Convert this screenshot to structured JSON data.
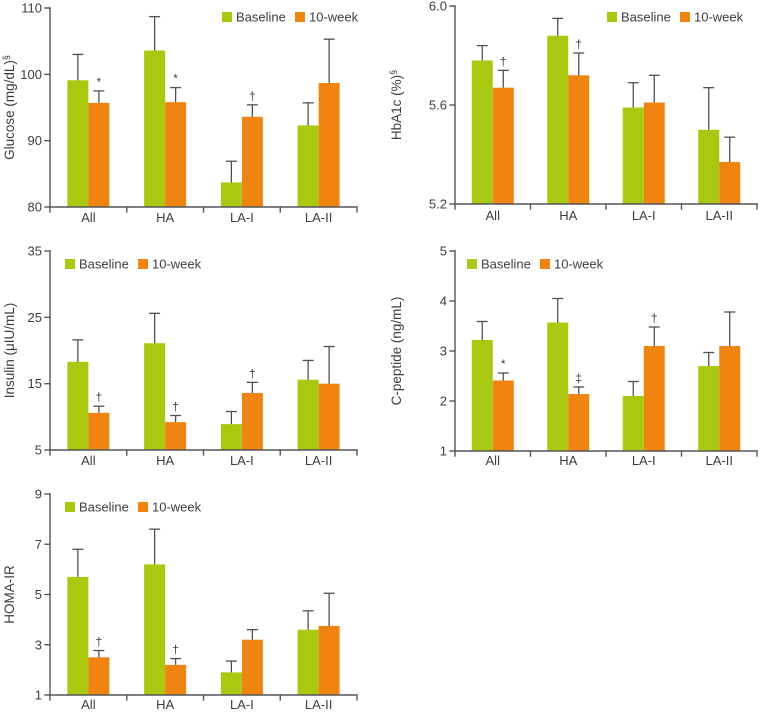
{
  "figure": {
    "description": "Five grouped bar charts comparing Baseline vs 10-week values across groups All, HA, LA-I, LA-II",
    "background_color": "#ffffff"
  },
  "colors": {
    "baseline_green": "#aac810",
    "week10_orange": "#f08410",
    "axis": "#54555a",
    "error_bar": "#4f5054",
    "text": "#3c3d40"
  },
  "legend": {
    "baseline_label": "Baseline",
    "week10_label": "10-week"
  },
  "chart_data": [
    {
      "type": "bar",
      "title": "",
      "ylabel": "Glucose (mg/dL)",
      "ylabel_superscript": "§",
      "xlabel": "",
      "categories": [
        "All",
        "HA",
        "LA-I",
        "LA-II"
      ],
      "ylim": [
        80,
        110
      ],
      "yticks": [
        80,
        90,
        100,
        110
      ],
      "ytick_labels": [
        "80",
        "90",
        "100",
        "110"
      ],
      "grid": false,
      "legend_position": "top-right",
      "series": [
        {
          "name": "Baseline",
          "color": "#aac810",
          "values": [
            99.1,
            103.6,
            83.7,
            92.3
          ],
          "errors": [
            3.9,
            5.1,
            3.2,
            3.4
          ]
        },
        {
          "name": "10-week",
          "color": "#f08410",
          "values": [
            95.7,
            95.8,
            93.6,
            98.7
          ],
          "errors": [
            1.8,
            2.2,
            1.8,
            6.6
          ]
        }
      ],
      "annotations": [
        {
          "series": "10-week",
          "category": "All",
          "symbol": "*"
        },
        {
          "series": "10-week",
          "category": "HA",
          "symbol": "*"
        },
        {
          "series": "10-week",
          "category": "LA-I",
          "symbol": "†"
        }
      ]
    },
    {
      "type": "bar",
      "title": "",
      "ylabel": "HbA1c (%)",
      "ylabel_superscript": "§",
      "xlabel": "",
      "categories": [
        "All",
        "HA",
        "LA-I",
        "LA-II"
      ],
      "ylim": [
        5.2,
        6.0
      ],
      "yticks": [
        5.2,
        5.6,
        6.0
      ],
      "ytick_labels": [
        "5.2",
        "5.6",
        "6.0"
      ],
      "grid": false,
      "legend_position": "top-right",
      "series": [
        {
          "name": "Baseline",
          "color": "#aac810",
          "values": [
            5.78,
            5.88,
            5.59,
            5.5
          ],
          "errors": [
            0.06,
            0.07,
            0.1,
            0.17
          ]
        },
        {
          "name": "10-week",
          "color": "#f08410",
          "values": [
            5.67,
            5.72,
            5.61,
            5.37
          ],
          "errors": [
            0.07,
            0.09,
            0.11,
            0.1
          ]
        }
      ],
      "annotations": [
        {
          "series": "10-week",
          "category": "All",
          "symbol": "†"
        },
        {
          "series": "10-week",
          "category": "HA",
          "symbol": "†"
        }
      ]
    },
    {
      "type": "bar",
      "title": "",
      "ylabel": "Insulin (μIU/mL)",
      "ylabel_superscript": "",
      "xlabel": "",
      "categories": [
        "All",
        "HA",
        "LA-I",
        "LA-II"
      ],
      "ylim": [
        5,
        35
      ],
      "yticks": [
        5,
        15,
        25,
        35
      ],
      "ytick_labels": [
        "5",
        "15",
        "25",
        "35"
      ],
      "grid": false,
      "legend_position": "top-left",
      "series": [
        {
          "name": "Baseline",
          "color": "#aac810",
          "values": [
            18.3,
            21.1,
            8.9,
            15.6
          ],
          "errors": [
            3.3,
            4.5,
            1.9,
            2.9
          ]
        },
        {
          "name": "10-week",
          "color": "#f08410",
          "values": [
            10.6,
            9.2,
            13.6,
            15.0
          ],
          "errors": [
            1.0,
            1.0,
            1.6,
            5.6
          ]
        }
      ],
      "annotations": [
        {
          "series": "10-week",
          "category": "All",
          "symbol": "†"
        },
        {
          "series": "10-week",
          "category": "HA",
          "symbol": "†"
        },
        {
          "series": "10-week",
          "category": "LA-I",
          "symbol": "†"
        }
      ]
    },
    {
      "type": "bar",
      "title": "",
      "ylabel": "C-peptide (ng/mL)",
      "ylabel_superscript": "",
      "xlabel": "",
      "categories": [
        "All",
        "HA",
        "LA-I",
        "LA-II"
      ],
      "ylim": [
        1,
        5
      ],
      "yticks": [
        1,
        2,
        3,
        4,
        5
      ],
      "ytick_labels": [
        "1",
        "2",
        "3",
        "4",
        "5"
      ],
      "grid": false,
      "legend_position": "top-left",
      "series": [
        {
          "name": "Baseline",
          "color": "#aac810",
          "values": [
            3.22,
            3.57,
            2.1,
            2.7
          ],
          "errors": [
            0.37,
            0.48,
            0.29,
            0.27
          ]
        },
        {
          "name": "10-week",
          "color": "#f08410",
          "values": [
            2.41,
            2.14,
            3.1,
            3.1
          ],
          "errors": [
            0.15,
            0.14,
            0.38,
            0.68
          ]
        }
      ],
      "annotations": [
        {
          "series": "10-week",
          "category": "All",
          "symbol": "*"
        },
        {
          "series": "10-week",
          "category": "HA",
          "symbol": "‡"
        },
        {
          "series": "10-week",
          "category": "LA-I",
          "symbol": "†"
        }
      ]
    },
    {
      "type": "bar",
      "title": "",
      "ylabel": "HOMA-IR",
      "ylabel_superscript": "",
      "xlabel": "",
      "categories": [
        "All",
        "HA",
        "LA-I",
        "LA-II"
      ],
      "ylim": [
        1,
        9
      ],
      "yticks": [
        1,
        3,
        5,
        7,
        9
      ],
      "ytick_labels": [
        "1",
        "3",
        "5",
        "7",
        "9"
      ],
      "grid": false,
      "legend_position": "top-left",
      "series": [
        {
          "name": "Baseline",
          "color": "#aac810",
          "values": [
            5.7,
            6.2,
            1.9,
            3.6
          ],
          "errors": [
            1.1,
            1.4,
            0.45,
            0.75
          ]
        },
        {
          "name": "10-week",
          "color": "#f08410",
          "values": [
            2.5,
            2.2,
            3.2,
            3.75
          ],
          "errors": [
            0.27,
            0.25,
            0.4,
            1.3
          ]
        }
      ],
      "annotations": [
        {
          "series": "10-week",
          "category": "All",
          "symbol": "†"
        },
        {
          "series": "10-week",
          "category": "HA",
          "symbol": "†"
        }
      ]
    }
  ]
}
